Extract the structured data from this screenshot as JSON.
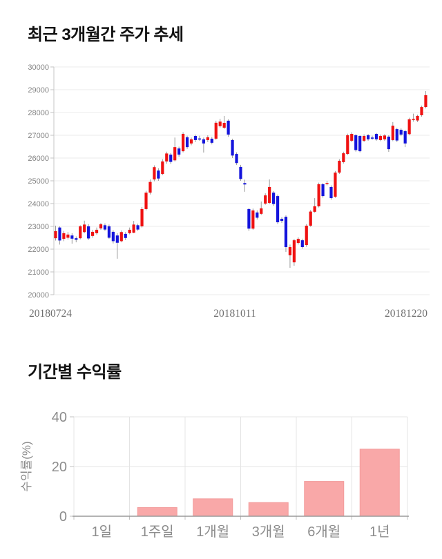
{
  "sections": {
    "price_trend": {
      "title": "최근 3개월간 주가 추세"
    },
    "returns": {
      "title": "기간별 수익률"
    }
  },
  "chart_data": [
    {
      "type": "candlestick",
      "title": "최근 3개월간 주가 추세",
      "ylim": [
        20000,
        30000
      ],
      "ytick_labels": [
        "30000",
        "29000",
        "28000",
        "27000",
        "26000",
        "25000",
        "24000",
        "23000",
        "22000",
        "21000",
        "20000"
      ],
      "xtick_labels": [
        "20180724",
        "20181011",
        "20181220"
      ],
      "grid": true,
      "legend": "none",
      "colors": {
        "up": "#ef1111",
        "down": "#1414dc",
        "wick": "#999999"
      },
      "candles_ohlc": [
        [
          22480,
          23030,
          22380,
          22790
        ],
        [
          22950,
          23000,
          22200,
          22380
        ],
        [
          22450,
          22800,
          22350,
          22700
        ],
        [
          22500,
          22750,
          22420,
          22640
        ],
        [
          22600,
          22700,
          22240,
          22460
        ],
        [
          22480,
          22560,
          22300,
          22410
        ],
        [
          22480,
          23050,
          22430,
          23000
        ],
        [
          22750,
          23250,
          22700,
          23080
        ],
        [
          23000,
          23100,
          22400,
          22470
        ],
        [
          22580,
          22850,
          22500,
          22760
        ],
        [
          22700,
          22950,
          22640,
          22850
        ],
        [
          22910,
          23150,
          22850,
          23090
        ],
        [
          23050,
          23130,
          22800,
          22860
        ],
        [
          23000,
          23080,
          22450,
          22500
        ],
        [
          22760,
          22830,
          22250,
          22350
        ],
        [
          22600,
          22700,
          21580,
          22280
        ],
        [
          22350,
          22820,
          22300,
          22750
        ],
        [
          22670,
          22750,
          22400,
          22490
        ],
        [
          22700,
          22950,
          22650,
          22850
        ],
        [
          22720,
          23240,
          22700,
          23080
        ],
        [
          23050,
          23120,
          22800,
          22860
        ],
        [
          23000,
          23850,
          22950,
          23760
        ],
        [
          23760,
          24560,
          23700,
          24480
        ],
        [
          24480,
          25060,
          24400,
          24950
        ],
        [
          25060,
          25680,
          24980,
          25600
        ],
        [
          25450,
          25550,
          25000,
          25100
        ],
        [
          25300,
          25950,
          25250,
          25850
        ],
        [
          25850,
          26280,
          25750,
          26200
        ],
        [
          26150,
          26220,
          25740,
          25830
        ],
        [
          25900,
          26900,
          25850,
          26480
        ],
        [
          26420,
          26500,
          26060,
          26150
        ],
        [
          26300,
          27130,
          26250,
          27060
        ],
        [
          26910,
          26980,
          26400,
          26480
        ],
        [
          26640,
          26900,
          26560,
          26820
        ],
        [
          26970,
          27030,
          26700,
          26790
        ],
        [
          26860,
          26980,
          26760,
          26850
        ],
        [
          26820,
          26900,
          26240,
          26640
        ],
        [
          26790,
          27000,
          26700,
          26910
        ],
        [
          26850,
          26930,
          26600,
          26670
        ],
        [
          26850,
          27640,
          26800,
          27550
        ],
        [
          27400,
          27720,
          27340,
          27600
        ],
        [
          27330,
          27850,
          27280,
          27545
        ],
        [
          27640,
          27700,
          26930,
          27030
        ],
        [
          26790,
          26850,
          26000,
          26110
        ],
        [
          26180,
          26250,
          25700,
          25780
        ],
        [
          25610,
          25700,
          25000,
          25080
        ],
        [
          24900,
          25050,
          24520,
          24840
        ],
        [
          23760,
          23800,
          22800,
          22900
        ],
        [
          22900,
          23780,
          22850,
          23700
        ],
        [
          23610,
          23700,
          23300,
          23380
        ],
        [
          23550,
          24090,
          23500,
          23790
        ],
        [
          24000,
          24450,
          23950,
          24360
        ],
        [
          24030,
          25060,
          23980,
          24730
        ],
        [
          24480,
          24550,
          23900,
          23980
        ],
        [
          24330,
          24400,
          23100,
          23180
        ],
        [
          23330,
          23400,
          23150,
          23240
        ],
        [
          23420,
          23480,
          21880,
          22090
        ],
        [
          21730,
          22200,
          21180,
          22090
        ],
        [
          21420,
          22450,
          21270,
          22390
        ],
        [
          22270,
          22520,
          22200,
          22450
        ],
        [
          22390,
          22460,
          22020,
          22090
        ],
        [
          22180,
          23100,
          22100,
          23030
        ],
        [
          23030,
          23720,
          22980,
          23650
        ],
        [
          23640,
          24240,
          23600,
          23880
        ],
        [
          23880,
          24920,
          23830,
          24850
        ],
        [
          24850,
          24900,
          24260,
          24330
        ],
        [
          24880,
          25000,
          24800,
          24900
        ],
        [
          24730,
          24800,
          24170,
          24240
        ],
        [
          24300,
          25430,
          24250,
          25360
        ],
        [
          25360,
          25950,
          25300,
          25880
        ],
        [
          25820,
          26280,
          25760,
          26210
        ],
        [
          26180,
          27070,
          26130,
          27000
        ],
        [
          26760,
          27130,
          26700,
          27060
        ],
        [
          27000,
          27050,
          26280,
          26350
        ],
        [
          26970,
          27000,
          26250,
          26300
        ],
        [
          26760,
          27040,
          26700,
          26970
        ],
        [
          27000,
          27060,
          26760,
          26820
        ],
        [
          26900,
          26980,
          26800,
          26890
        ],
        [
          27060,
          27100,
          26760,
          26820
        ],
        [
          26790,
          27030,
          26740,
          26970
        ],
        [
          26820,
          27050,
          26760,
          26990
        ],
        [
          26940,
          27000,
          26270,
          26390
        ],
        [
          26790,
          27580,
          26740,
          27420
        ],
        [
          27270,
          27330,
          26700,
          26770
        ],
        [
          27240,
          27300,
          26960,
          27030
        ],
        [
          27180,
          27240,
          26480,
          26640
        ],
        [
          27050,
          27770,
          27000,
          27700
        ],
        [
          27700,
          27950,
          27600,
          27720
        ],
        [
          27650,
          27900,
          27580,
          27850
        ],
        [
          27880,
          28300,
          27820,
          28240
        ],
        [
          28240,
          28940,
          28180,
          28760
        ]
      ]
    },
    {
      "type": "bar",
      "title": "기간별 수익률",
      "categories": [
        "1일",
        "1주일",
        "1개월",
        "3개월",
        "6개월",
        "1년"
      ],
      "values": [
        0,
        3.5,
        7,
        5.5,
        14,
        27
      ],
      "ylabel": "수익률(%)",
      "ytick_labels": [
        "0",
        "20",
        "40"
      ],
      "ylim": [
        0,
        40
      ],
      "grid": true,
      "legend": "none",
      "bar_color": "#f9a8a8",
      "bar_border_color": "#f29b9b"
    }
  ]
}
